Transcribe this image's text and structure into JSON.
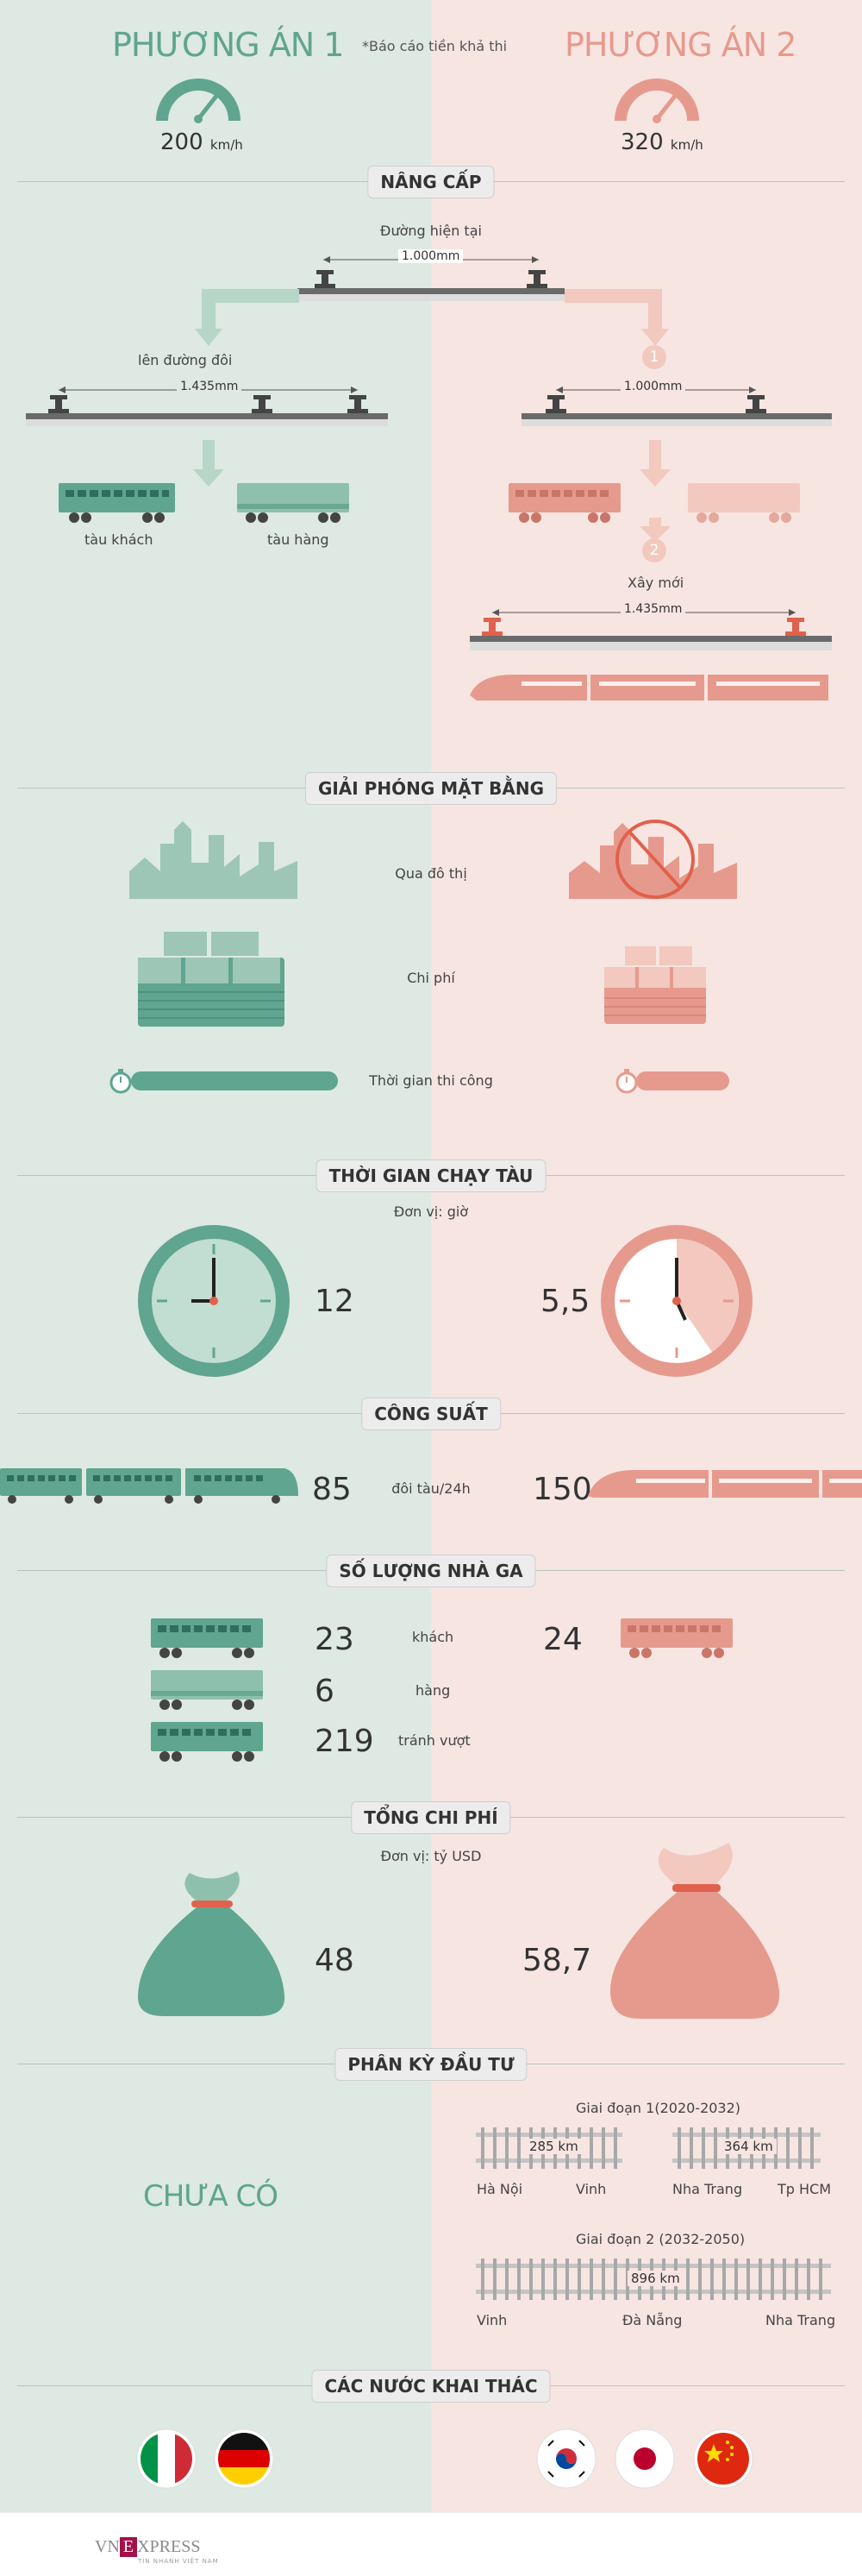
{
  "header": {
    "option1_title": "PHƯƠNG ÁN 1",
    "option2_title": "PHƯƠNG ÁN 2",
    "note": "*Báo cáo tiền khả thi",
    "option1_speed": "200",
    "option2_speed": "320",
    "speed_unit": "km/h"
  },
  "upgrade": {
    "title": "NÂNG CẤP",
    "current_track": "Đường hiện tại",
    "gauge_1000": "1.000mm",
    "double_track": "lên đường đôi",
    "gauge_1435": "1.435mm",
    "passenger_train": "tàu khách",
    "freight_train": "tàu hàng",
    "step1": "1",
    "step2": "2",
    "right_gauge_1000": "1.000mm",
    "new_build": "Xây mới",
    "right_gauge_1435": "1.435mm"
  },
  "clearance": {
    "title": "GIẢI PHÓNG MẶT BẰNG",
    "through_city": "Qua đô thị",
    "cost": "Chi phí",
    "construction_time": "Thời gian thi công",
    "time_bar_option1": 1.0,
    "time_bar_option2": 0.45
  },
  "run_time": {
    "title": "THỜI GIAN CHẠY TÀU",
    "unit": "Đơn vị: giờ",
    "option1": "12",
    "option2": "5,5"
  },
  "capacity": {
    "title": "CÔNG SUẤT",
    "option1": "85",
    "unit": "đôi tàu/24h",
    "option2": "150"
  },
  "stations": {
    "title": "SỐ LƯỢNG NHÀ GA",
    "passenger_count": "23",
    "passenger_label": "khách",
    "passenger_count_opt2": "24",
    "freight_count": "6",
    "freight_label": "hàng",
    "passing_count": "219",
    "passing_label": "tránh vượt"
  },
  "total_cost": {
    "title": "TỔNG CHI PHÍ",
    "unit": "Đơn vị: tỷ USD",
    "option1": "48",
    "option2": "58,7"
  },
  "phasing": {
    "title": "PHÂN KỲ ĐẦU TƯ",
    "none": "CHƯA CÓ",
    "phase1": "Giai đoạn 1(2020-2032)",
    "seg1_km": "285 km",
    "seg1_from": "Hà Nội",
    "seg1_to": "Vinh",
    "seg2_km": "364 km",
    "seg2_from": "Nha Trang",
    "seg2_to": "Tp HCM",
    "phase2": "Giai đoạn 2 (2032-2050)",
    "seg3_km": "896 km",
    "seg3_from": "Vinh",
    "seg3_mid": "Đà Nẵng",
    "seg3_to": "Nha Trang"
  },
  "countries": {
    "title": "CÁC NƯỚC KHAI THÁC"
  },
  "footer": {
    "logo_vn": "VN",
    "logo_e": "E",
    "logo_xpress": "XPRESS",
    "logo_sub": "TIN NHANH VIỆT NAM"
  },
  "colors": {
    "green": "#5fa58f",
    "pink": "#e69a8d",
    "bg_left": "#dde9e2",
    "bg_right": "#f7e5e2"
  }
}
